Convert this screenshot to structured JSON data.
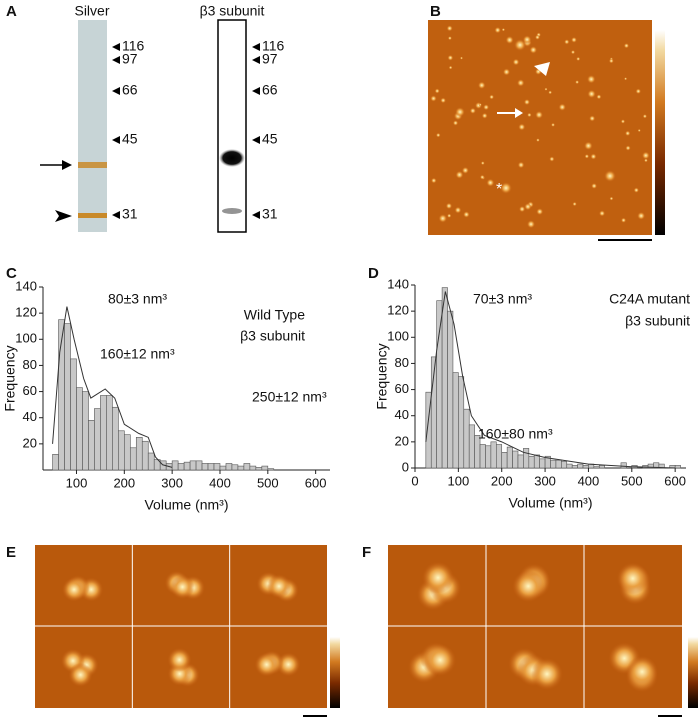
{
  "panel_labels": {
    "a": "A",
    "b": "B",
    "c": "C",
    "d": "D",
    "e": "E",
    "f": "F"
  },
  "panel_a": {
    "lanes": [
      {
        "title": "Silver",
        "markers": [
          "116",
          "97",
          "66",
          "45",
          "31"
        ]
      },
      {
        "title": "β3 subunit",
        "markers": [
          "116",
          "97",
          "66",
          "45",
          "31"
        ]
      }
    ]
  },
  "chart_data": [
    {
      "type": "histogram",
      "xlabel": "Volume (nm³)",
      "ylabel": "Frequency",
      "color": "#c8c8c8",
      "bins": [
        50,
        62.5,
        75,
        87.5,
        100,
        112.5,
        125,
        137.5,
        150,
        162.5,
        175,
        187.5,
        200,
        212.5,
        225,
        237.5,
        250,
        262.5,
        275,
        287.5,
        300,
        312.5,
        325,
        337.5,
        350,
        362.5,
        375,
        387.5,
        400,
        412.5,
        425,
        437.5,
        450,
        462.5,
        475,
        487.5,
        500,
        512.5
      ],
      "values": [
        12,
        115,
        112,
        85,
        63,
        60,
        38,
        47,
        57,
        57,
        48,
        30,
        27,
        17,
        25,
        22,
        13,
        8,
        7,
        5,
        7,
        5,
        6,
        7,
        7,
        5,
        5,
        5,
        3,
        5,
        4,
        3,
        5,
        3,
        2,
        3,
        1
      ],
      "xlim": [
        30,
        630
      ],
      "xticks": [
        100,
        200,
        300,
        400,
        500,
        600
      ],
      "ylim": [
        0,
        140
      ],
      "yticks": [
        20,
        40,
        60,
        80,
        100,
        120,
        140
      ],
      "annotations": [
        "80±3 nm³",
        "160±12 nm³",
        "250±12 nm³",
        "Wild Type",
        "β3 subunit"
      ],
      "fit": {
        "x": [
          50,
          65,
          80,
          95,
          115,
          130,
          160,
          180,
          200,
          230,
          250,
          265,
          280,
          300
        ],
        "values": [
          20,
          90,
          125,
          100,
          70,
          55,
          62,
          55,
          35,
          28,
          25,
          10,
          4,
          2
        ]
      }
    },
    {
      "type": "histogram",
      "xlabel": "Volume (nm³)",
      "ylabel": "Frequency",
      "color": "#c8c8c8",
      "bins": [
        25,
        37.5,
        50,
        62.5,
        75,
        87.5,
        100,
        112.5,
        125,
        137.5,
        150,
        162.5,
        175,
        187.5,
        200,
        212.5,
        225,
        237.5,
        250,
        262.5,
        275,
        287.5,
        300,
        312.5,
        325,
        337.5,
        350,
        362.5,
        375,
        387.5,
        400,
        412.5,
        425,
        437.5,
        450,
        462.5,
        475,
        487.5,
        500,
        512.5,
        525,
        537.5,
        550,
        562.5,
        575,
        587.5,
        600,
        612.5
      ],
      "values": [
        58,
        85,
        128,
        138,
        120,
        73,
        70,
        45,
        33,
        25,
        18,
        17,
        20,
        18,
        12,
        16,
        13,
        10,
        15,
        9,
        10,
        7,
        9,
        6,
        6,
        5,
        3,
        2,
        3,
        2,
        3,
        1,
        2,
        0,
        0,
        0,
        4,
        0,
        2,
        0,
        2,
        3,
        4,
        3,
        0,
        2,
        2
      ],
      "xlim": [
        0,
        625
      ],
      "xticks": [
        0,
        100,
        200,
        300,
        400,
        500,
        600
      ],
      "ylim": [
        0,
        140
      ],
      "yticks": [
        0,
        20,
        40,
        60,
        80,
        100,
        120,
        140
      ],
      "annotations": [
        "70±3 nm³",
        "C24A mutant",
        "β3 subunit",
        "160±80 nm³"
      ],
      "fit": {
        "x": [
          25,
          50,
          70,
          90,
          110,
          130,
          160,
          200,
          250,
          300,
          400,
          500,
          600
        ],
        "values": [
          20,
          90,
          135,
          110,
          70,
          40,
          25,
          20,
          12,
          8,
          3,
          1,
          0
        ]
      }
    }
  ]
}
